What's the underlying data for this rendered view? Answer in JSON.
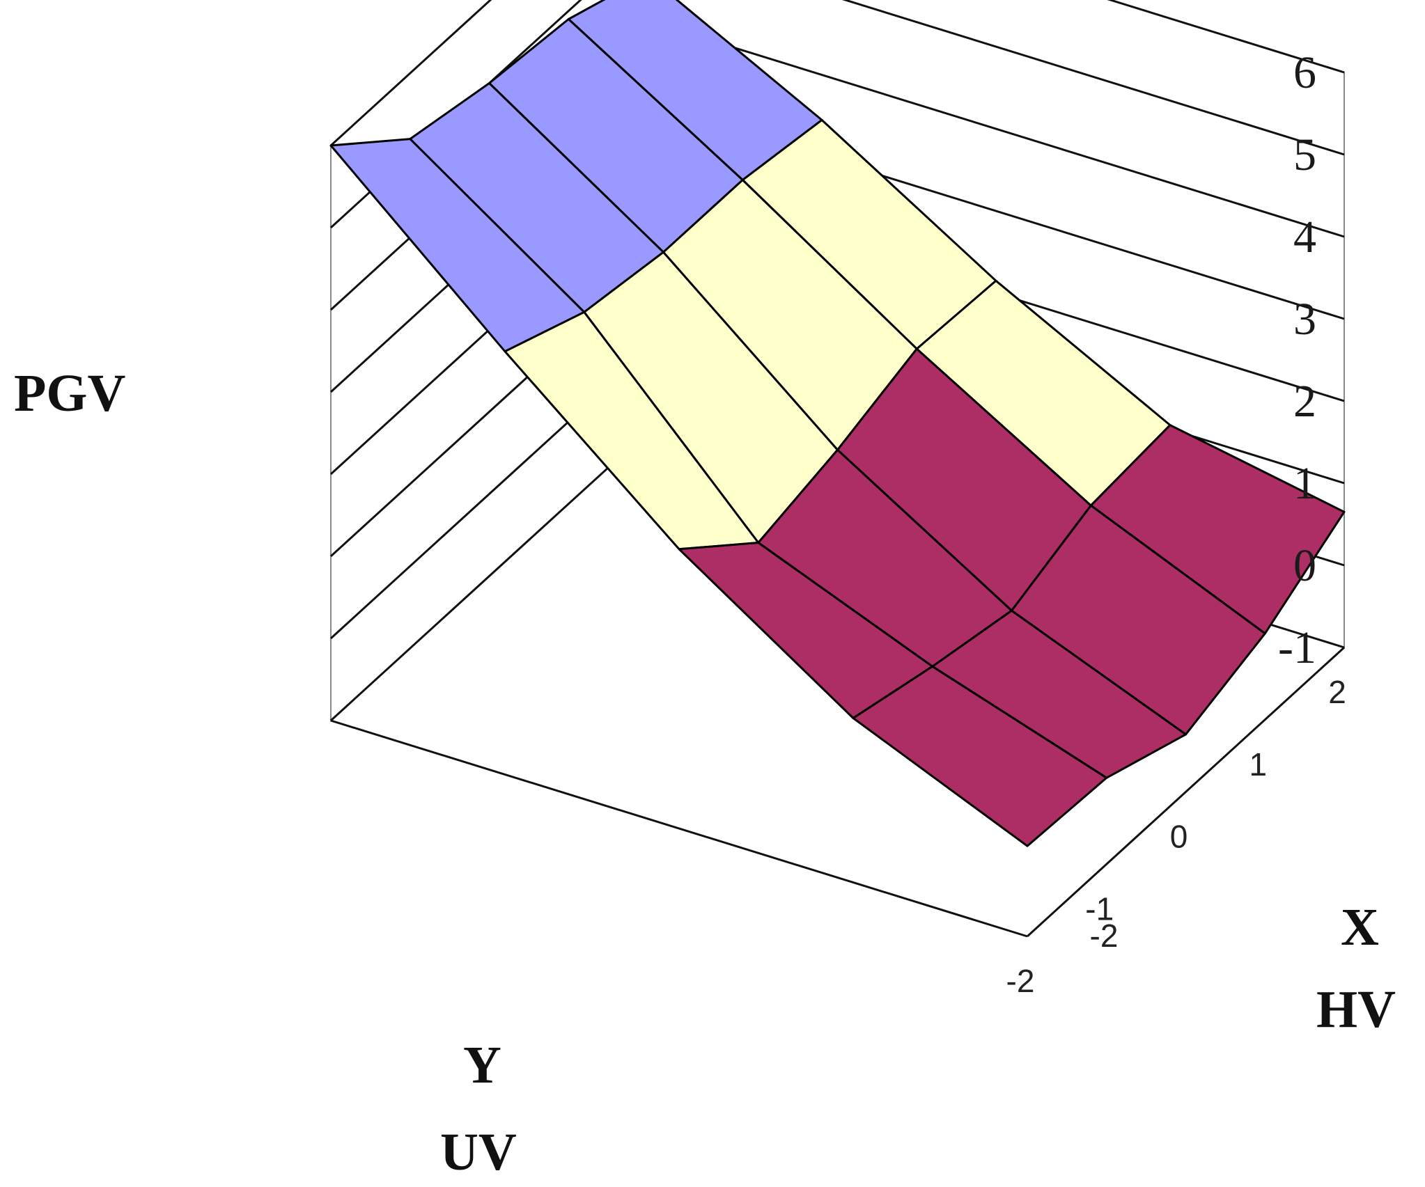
{
  "chart_data": {
    "type": "surface3d",
    "zlabel": "PGV",
    "xlabel": "X",
    "xlabel_sub": "HV",
    "ylabel": "Y",
    "ylabel_sub": "UV",
    "x": [
      -2,
      -1,
      0,
      1,
      2
    ],
    "y": [
      2,
      1,
      0,
      -1,
      -2
    ],
    "x_tick_labels": [
      "-2"
    ],
    "y_tick_labels": [
      "2",
      "1",
      "0",
      "-1",
      "-2"
    ],
    "z_tick_labels": [
      "-1",
      "0",
      "1",
      "2",
      "3",
      "4",
      "5",
      "6"
    ],
    "zlim": [
      -1,
      6
    ],
    "z_values": [
      [
        0.65,
        1.05,
        2.15,
        3.45,
        4.55
      ],
      [
        0.05,
        0.95,
        2.2,
        3.6,
        4.9
      ],
      [
        -0.3,
        0.55,
        1.85,
        3.6,
        5.0
      ],
      [
        0.05,
        0.75,
        1.6,
        3.75,
        5.2
      ],
      [
        0.1,
        1.0,
        2.4,
        4.15,
        6.0
      ]
    ],
    "bands": [
      {
        "from": -1,
        "to": 0,
        "color": "#9999ff"
      },
      {
        "from": 0,
        "to": 1.5,
        "color": "#ad2d65"
      },
      {
        "from": 1.5,
        "to": 3,
        "color": "#ffffcc"
      },
      {
        "from": 3,
        "to": 6,
        "color": "#9999ff"
      }
    ],
    "grid": true
  }
}
